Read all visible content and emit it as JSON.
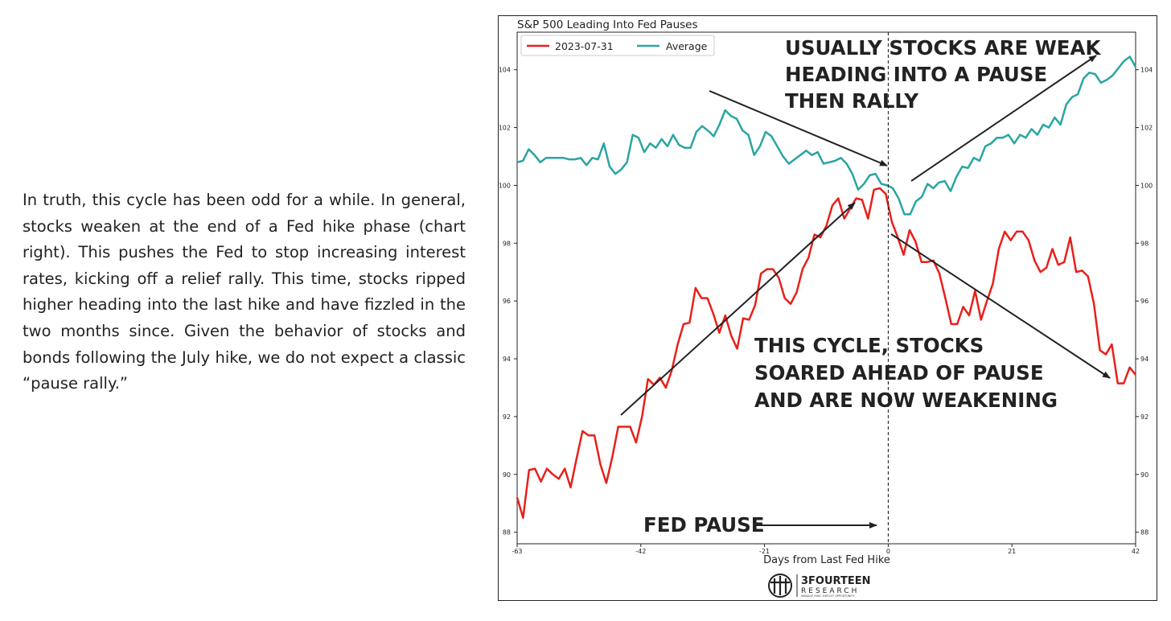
{
  "article": {
    "paragraph": "In truth, this cycle has been odd for a while. In general, stocks weaken at the end of a Fed hike phase (chart right). This pushes the Fed to stop increasing interest rates, kicking off a relief rally. This time, stocks ripped higher heading into the last hike and have fizzled in the two months since. Given the behavior of stocks and bonds following the July hike, we do not expect a classic “pause rally.”"
  },
  "chart_data": {
    "type": "line",
    "title": "S&P 500 Leading Into Fed Pauses",
    "xlabel": "Days from Last Fed Hike",
    "ylabel": "",
    "xlim": [
      -63,
      42
    ],
    "ylim": [
      87.6,
      105.3
    ],
    "x_ticks": [
      -63,
      -42,
      -21,
      0,
      21,
      42
    ],
    "y_ticks": [
      88,
      90,
      92,
      94,
      96,
      98,
      100,
      102,
      104
    ],
    "legend": {
      "placement": "top-left"
    },
    "colors": {
      "series_2023": "#e8201a",
      "series_average": "#2aa5a1",
      "annotation": "#222222"
    },
    "series": [
      {
        "name": "2023-07-31",
        "values": [
          89.2,
          88.5,
          90.15,
          90.2,
          89.75,
          90.2,
          90.0,
          89.85,
          90.2,
          89.55,
          90.55,
          91.5,
          91.35,
          91.35,
          90.35,
          89.7,
          90.6,
          91.65,
          91.65,
          91.65,
          91.1,
          92.0,
          93.3,
          93.1,
          93.35,
          93.0,
          93.6,
          94.5,
          95.2,
          95.25,
          96.45,
          96.1,
          96.1,
          95.55,
          94.9,
          95.5,
          94.8,
          94.35,
          95.4,
          95.35,
          95.85,
          96.95,
          97.1,
          97.1,
          96.8,
          96.1,
          95.9,
          96.3,
          97.1,
          97.5,
          98.3,
          98.2,
          98.6,
          99.3,
          99.55,
          98.85,
          99.2,
          99.55,
          99.5,
          98.85,
          99.85,
          99.9,
          99.7,
          98.75,
          98.2,
          97.6,
          98.45,
          98.05,
          97.35,
          97.35,
          97.4,
          96.95,
          96.1,
          95.2,
          95.2,
          95.8,
          95.5,
          96.35,
          95.35,
          96.0,
          96.6,
          97.8,
          98.4,
          98.1,
          98.4,
          98.4,
          98.1,
          97.4,
          97.0,
          97.15,
          97.8,
          97.25,
          97.35,
          98.2,
          97.0,
          97.05,
          96.85,
          95.9,
          94.3,
          94.15,
          94.5,
          93.15,
          93.15,
          93.7,
          93.45
        ]
      },
      {
        "name": "Average",
        "values": [
          100.8,
          100.85,
          101.25,
          101.05,
          100.8,
          100.95,
          100.95,
          100.95,
          100.95,
          100.9,
          100.9,
          100.95,
          100.7,
          100.95,
          100.9,
          101.45,
          100.65,
          100.4,
          100.55,
          100.8,
          101.75,
          101.65,
          101.15,
          101.45,
          101.3,
          101.6,
          101.35,
          101.75,
          101.4,
          101.3,
          101.3,
          101.85,
          102.05,
          101.9,
          101.7,
          102.1,
          102.6,
          102.4,
          102.3,
          101.9,
          101.75,
          101.05,
          101.35,
          101.85,
          101.7,
          101.35,
          101.0,
          100.75,
          100.9,
          101.05,
          101.2,
          101.05,
          101.15,
          100.75,
          100.8,
          100.85,
          100.95,
          100.75,
          100.4,
          99.85,
          100.05,
          100.35,
          100.4,
          100.05,
          100.0,
          99.9,
          99.55,
          99.0,
          99.0,
          99.45,
          99.6,
          100.05,
          99.9,
          100.1,
          100.15,
          99.8,
          100.3,
          100.65,
          100.6,
          100.95,
          100.85,
          101.35,
          101.45,
          101.65,
          101.65,
          101.75,
          101.45,
          101.75,
          101.65,
          101.95,
          101.75,
          102.1,
          102.0,
          102.35,
          102.1,
          102.8,
          103.05,
          103.15,
          103.7,
          103.9,
          103.85,
          103.55,
          103.65,
          103.8,
          104.05,
          104.3,
          104.45,
          104.1
        ]
      }
    ],
    "annotations": {
      "top_lines": [
        "USUALLY STOCKS ARE WEAK",
        "HEADING INTO A PAUSE",
        "THEN RALLY"
      ],
      "middle_lines": [
        "THIS CYCLE, STOCKS",
        "SOARED AHEAD OF PAUSE",
        "AND ARE NOW WEAKENING"
      ],
      "bottom": "FED PAUSE"
    },
    "logo": {
      "name": "3FOURTEEN",
      "subname": "RESEARCH",
      "tagline": "MANAGE RISK. EXPLOIT OPPORTUNITY"
    }
  }
}
